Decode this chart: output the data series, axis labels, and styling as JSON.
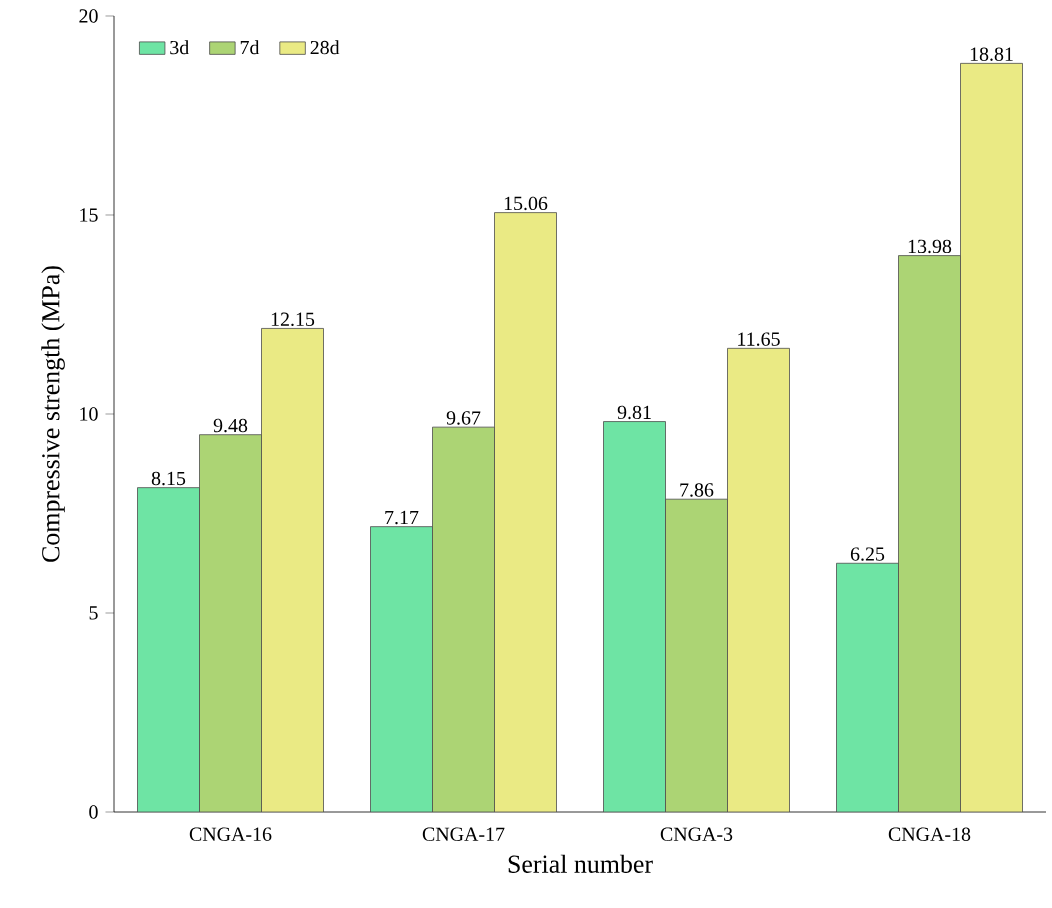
{
  "chart_data": {
    "type": "bar",
    "xlabel": "Serial number",
    "ylabel": "Compressive strength (MPa)",
    "categories": [
      "CNGA-16",
      "CNGA-17",
      "CNGA-3",
      "CNGA-18"
    ],
    "series": [
      {
        "name": "3d",
        "color": "#6ee4a4",
        "values": [
          8.15,
          7.17,
          9.81,
          6.25
        ]
      },
      {
        "name": "7d",
        "color": "#acd474",
        "values": [
          9.48,
          9.67,
          7.86,
          13.98
        ]
      },
      {
        "name": "28d",
        "color": "#eaea84",
        "values": [
          12.15,
          15.06,
          11.65,
          18.81
        ]
      }
    ],
    "ylim": [
      0,
      20
    ],
    "yticks": [
      0,
      5,
      10,
      15,
      20
    ],
    "data_labels": true,
    "legend": "top left",
    "grid": false
  }
}
